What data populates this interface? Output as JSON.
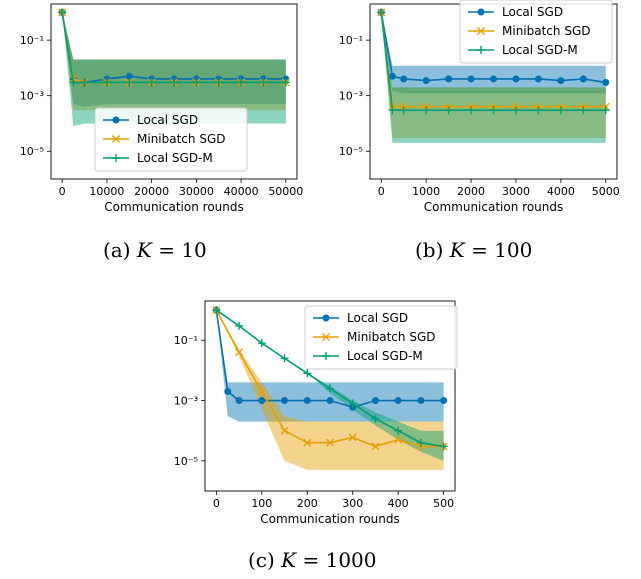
{
  "chart_data": [
    {
      "type": "line",
      "caption": {
        "prefix": "(a) ",
        "var": "K",
        "suffix": " = 10"
      },
      "title": "",
      "xlabel": "Communication rounds",
      "ylabel": "",
      "yscale": "log",
      "xlim": [
        -2500,
        52500
      ],
      "ylim": [
        1e-06,
        2
      ],
      "xticks": [
        0,
        10000,
        20000,
        30000,
        40000,
        50000
      ],
      "xtick_labels": [
        "0",
        "10000",
        "20000",
        "30000",
        "40000",
        "50000"
      ],
      "yticks": [
        0.1,
        0.001,
        1e-05
      ],
      "ytick_labels": [
        "10⁻¹",
        "10⁻³",
        "10⁻⁵"
      ],
      "grid": false,
      "legend": "lower-center",
      "series": [
        {
          "name": "Local SGD",
          "color": "#0072b2",
          "marker": "circle",
          "x": [
            0,
            2500,
            5000,
            10000,
            15000,
            20000,
            25000,
            30000,
            35000,
            40000,
            45000,
            50000
          ],
          "y": [
            1.0,
            0.004,
            0.003,
            0.004,
            0.005,
            0.004,
            0.004,
            0.004,
            0.004,
            0.004,
            0.004,
            0.004
          ],
          "band_low": [
            1.0,
            0.0005,
            0.0004,
            0.0005,
            0.0005,
            0.0005,
            0.0005,
            0.0005,
            0.0005,
            0.0005,
            0.0005,
            0.0005
          ],
          "band_high": [
            1.0,
            0.02,
            0.02,
            0.02,
            0.02,
            0.02,
            0.02,
            0.02,
            0.02,
            0.02,
            0.02,
            0.02
          ]
        },
        {
          "name": "Minibatch SGD",
          "color": "#e69f00",
          "marker": "x",
          "x": [
            0,
            2500,
            5000,
            10000,
            15000,
            20000,
            25000,
            30000,
            35000,
            40000,
            45000,
            50000
          ],
          "y": [
            1.0,
            0.004,
            0.003,
            0.003,
            0.003,
            0.003,
            0.003,
            0.003,
            0.003,
            0.003,
            0.003,
            0.003
          ],
          "band_low": [
            1.0,
            0.0003,
            0.0003,
            0.0003,
            0.0003,
            0.0003,
            0.0003,
            0.0003,
            0.0003,
            0.0003,
            0.0003,
            0.0003
          ],
          "band_high": [
            1.0,
            0.02,
            0.02,
            0.02,
            0.02,
            0.02,
            0.02,
            0.02,
            0.02,
            0.02,
            0.02,
            0.02
          ]
        },
        {
          "name": "Local SGD-M",
          "color": "#009e73",
          "marker": "plus",
          "x": [
            0,
            2500,
            5000,
            10000,
            15000,
            20000,
            25000,
            30000,
            35000,
            40000,
            45000,
            50000
          ],
          "y": [
            1.0,
            0.003,
            0.003,
            0.003,
            0.003,
            0.003,
            0.003,
            0.003,
            0.003,
            0.003,
            0.003,
            0.003
          ],
          "band_low": [
            1.0,
            8e-05,
            0.0001,
            0.0001,
            0.0001,
            0.0001,
            0.0001,
            0.0001,
            0.0001,
            0.0001,
            0.0001,
            0.0001
          ],
          "band_high": [
            1.0,
            0.02,
            0.02,
            0.02,
            0.02,
            0.02,
            0.02,
            0.02,
            0.02,
            0.02,
            0.02,
            0.02
          ]
        }
      ]
    },
    {
      "type": "line",
      "caption": {
        "prefix": "(b) ",
        "var": "K",
        "suffix": " = 100"
      },
      "title": "",
      "xlabel": "Communication rounds",
      "ylabel": "",
      "yscale": "log",
      "xlim": [
        -250,
        5250
      ],
      "ylim": [
        1e-06,
        2
      ],
      "xticks": [
        0,
        1000,
        2000,
        3000,
        4000,
        5000
      ],
      "xtick_labels": [
        "0",
        "1000",
        "2000",
        "3000",
        "4000",
        "5000"
      ],
      "yticks": [
        0.1,
        0.001,
        1e-05
      ],
      "ytick_labels": [
        "10⁻¹",
        "10⁻³",
        "10⁻⁵"
      ],
      "grid": false,
      "legend": "upper-right",
      "series": [
        {
          "name": "Local SGD",
          "color": "#0072b2",
          "marker": "circle",
          "x": [
            0,
            250,
            500,
            1000,
            1500,
            2000,
            2500,
            3000,
            3500,
            4000,
            4500,
            5000
          ],
          "y": [
            1.0,
            0.005,
            0.004,
            0.0035,
            0.004,
            0.004,
            0.004,
            0.004,
            0.004,
            0.0035,
            0.004,
            0.003
          ],
          "band_low": [
            1.0,
            0.0015,
            0.0012,
            0.0012,
            0.0012,
            0.0012,
            0.0012,
            0.0012,
            0.0012,
            0.0012,
            0.0012,
            0.0012
          ],
          "band_high": [
            1.0,
            0.012,
            0.012,
            0.012,
            0.012,
            0.012,
            0.012,
            0.012,
            0.012,
            0.012,
            0.012,
            0.012
          ]
        },
        {
          "name": "Minibatch SGD",
          "color": "#e69f00",
          "marker": "x",
          "x": [
            0,
            250,
            500,
            1000,
            1500,
            2000,
            2500,
            3000,
            3500,
            4000,
            4500,
            5000
          ],
          "y": [
            1.0,
            0.0004,
            0.0004,
            0.0004,
            0.0004,
            0.0004,
            0.0004,
            0.0004,
            0.0004,
            0.0004,
            0.0004,
            0.0004
          ],
          "band_low": [
            1.0,
            3e-05,
            3e-05,
            3e-05,
            3e-05,
            3e-05,
            3e-05,
            3e-05,
            3e-05,
            3e-05,
            3e-05,
            3e-05
          ],
          "band_high": [
            1.0,
            0.002,
            0.002,
            0.002,
            0.002,
            0.002,
            0.002,
            0.002,
            0.002,
            0.002,
            0.002,
            0.002
          ]
        },
        {
          "name": "Local SGD-M",
          "color": "#009e73",
          "marker": "plus",
          "x": [
            0,
            250,
            500,
            1000,
            1500,
            2000,
            2500,
            3000,
            3500,
            4000,
            4500,
            5000
          ],
          "y": [
            1.0,
            0.0003,
            0.0003,
            0.0003,
            0.0003,
            0.0003,
            0.0003,
            0.0003,
            0.0003,
            0.0003,
            0.0003,
            0.0003
          ],
          "band_low": [
            1.0,
            2e-05,
            2e-05,
            2e-05,
            2e-05,
            2e-05,
            2e-05,
            2e-05,
            2e-05,
            2e-05,
            2e-05,
            2e-05
          ],
          "band_high": [
            1.0,
            0.002,
            0.002,
            0.002,
            0.002,
            0.002,
            0.002,
            0.002,
            0.002,
            0.002,
            0.002,
            0.002
          ]
        }
      ]
    },
    {
      "type": "line",
      "caption": {
        "prefix": "(c) ",
        "var": "K",
        "suffix": " = 1000"
      },
      "title": "",
      "xlabel": "Communication rounds",
      "ylabel": "",
      "yscale": "log",
      "xlim": [
        -25,
        525
      ],
      "ylim": [
        1e-06,
        2
      ],
      "xticks": [
        0,
        100,
        200,
        300,
        400,
        500
      ],
      "xtick_labels": [
        "0",
        "100",
        "200",
        "300",
        "400",
        "500"
      ],
      "yticks": [
        0.1,
        0.001,
        1e-05
      ],
      "ytick_labels": [
        "10⁻¹",
        "10⁻³",
        "10⁻⁵"
      ],
      "grid": false,
      "legend": "upper-right",
      "series": [
        {
          "name": "Local SGD",
          "color": "#0072b2",
          "marker": "circle",
          "x": [
            0,
            25,
            50,
            100,
            150,
            200,
            250,
            300,
            350,
            400,
            450,
            500
          ],
          "y": [
            1.0,
            0.002,
            0.001,
            0.001,
            0.001,
            0.001,
            0.001,
            0.0006,
            0.001,
            0.001,
            0.001,
            0.001
          ],
          "band_low": [
            1.0,
            0.0003,
            0.0002,
            0.0002,
            0.0002,
            0.0002,
            0.0002,
            0.0002,
            0.0002,
            0.0002,
            0.0002,
            0.0002
          ],
          "band_high": [
            1.0,
            0.004,
            0.004,
            0.004,
            0.004,
            0.004,
            0.004,
            0.004,
            0.004,
            0.004,
            0.004,
            0.004
          ]
        },
        {
          "name": "Minibatch SGD",
          "color": "#e69f00",
          "marker": "x",
          "x": [
            0,
            50,
            100,
            150,
            200,
            250,
            300,
            350,
            400,
            450,
            500
          ],
          "y": [
            1.0,
            0.04,
            0.002,
            0.0001,
            4e-05,
            4e-05,
            6e-05,
            3e-05,
            5e-05,
            3e-05,
            3e-05
          ],
          "band_low": [
            1.0,
            0.03,
            0.0005,
            1e-05,
            5e-06,
            5e-06,
            5e-06,
            5e-06,
            5e-06,
            5e-06,
            5e-06
          ],
          "band_high": [
            1.0,
            0.05,
            0.004,
            0.0003,
            0.0002,
            0.0002,
            0.0002,
            0.0002,
            0.0002,
            0.0002,
            0.0002
          ]
        },
        {
          "name": "Local SGD-M",
          "color": "#009e73",
          "marker": "plus",
          "x": [
            0,
            50,
            100,
            150,
            200,
            250,
            300,
            350,
            400,
            450,
            500
          ],
          "y": [
            1.0,
            0.3,
            0.08,
            0.025,
            0.008,
            0.0025,
            0.0008,
            0.00025,
            0.0001,
            4e-05,
            3e-05
          ],
          "band_low": [
            1.0,
            0.3,
            0.08,
            0.025,
            0.008,
            0.0018,
            0.0005,
            0.00015,
            5e-05,
            2e-05,
            1e-05
          ],
          "band_high": [
            1.0,
            0.3,
            0.08,
            0.025,
            0.008,
            0.003,
            0.001,
            0.0004,
            0.0002,
            0.0001,
            0.0001
          ]
        }
      ]
    }
  ]
}
